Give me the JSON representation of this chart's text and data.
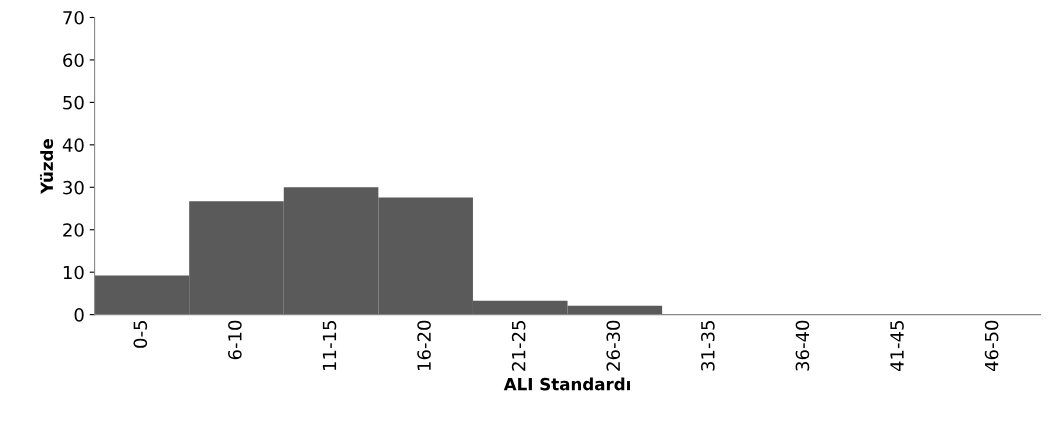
{
  "chart_data": {
    "type": "bar",
    "xlabel": "ALI Standardı",
    "ylabel": "Yüzde",
    "categories": [
      "0-5",
      "6-10",
      "11-15",
      "16-20",
      "21-25",
      "26-30",
      "31-35",
      "36-40",
      "41-45",
      "46-50"
    ],
    "values": [
      9.2,
      26.7,
      30.0,
      27.6,
      3.3,
      2.1,
      0,
      0,
      0,
      0
    ],
    "color": "#5a5a5a",
    "ylim": [
      0,
      70
    ],
    "yticks": [
      0,
      10,
      20,
      30,
      40,
      50,
      60,
      70
    ],
    "grid": false
  }
}
